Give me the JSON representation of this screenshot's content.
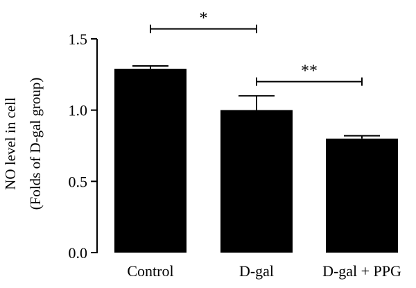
{
  "chart_data": {
    "type": "bar",
    "categories": [
      "Control",
      "D-gal",
      "D-gal + PPG"
    ],
    "values": [
      1.29,
      1.0,
      0.8
    ],
    "errors": [
      0.02,
      0.1,
      0.02
    ],
    "ylabel_lines": [
      "NO level in cell",
      "(Folds of D-gal group)"
    ],
    "ylim": [
      0,
      1.5
    ],
    "yticks": [
      {
        "value": 0,
        "label": "0.0"
      },
      {
        "value": 0.5,
        "label": "0.5"
      },
      {
        "value": 1.0,
        "label": "1.0"
      },
      {
        "value": 1.5,
        "label": "1.5"
      }
    ],
    "significance": [
      {
        "from": 0,
        "to": 1,
        "label": "*",
        "y": 1.57
      },
      {
        "from": 1,
        "to": 2,
        "label": "**",
        "y": 1.2
      }
    ],
    "bar_color": "#000000",
    "grid": false,
    "legend": "none"
  }
}
